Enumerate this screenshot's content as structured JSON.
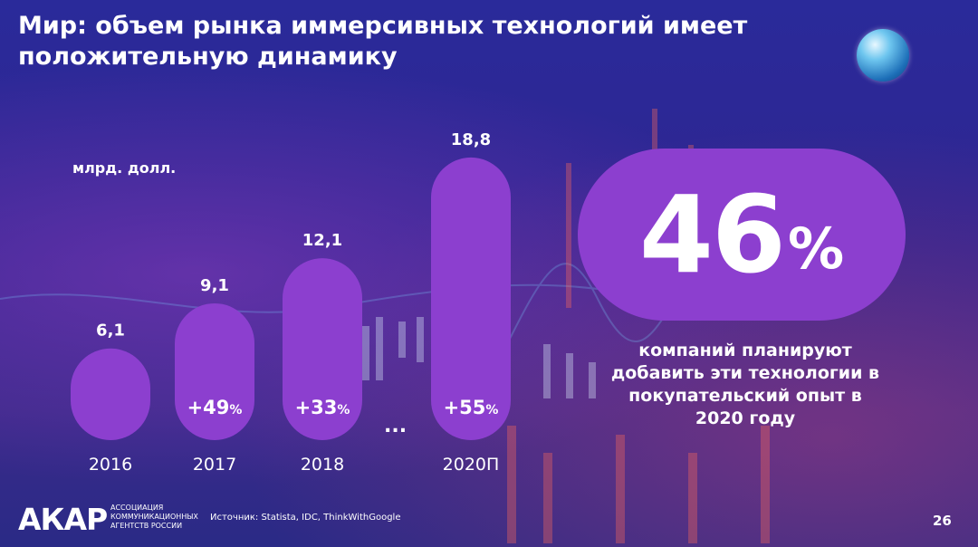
{
  "title": "Мир: объем рынка иммерсивных технологий имеет положительную динамику",
  "chart_data": {
    "type": "bar",
    "unit_label": "млрд. долл.",
    "categories": [
      "2016",
      "2017",
      "2018",
      "2020П"
    ],
    "values": [
      6.1,
      9.1,
      12.1,
      18.8
    ],
    "value_labels": [
      "6,1",
      "9,1",
      "12,1",
      "18,8"
    ],
    "growth_labels": [
      "",
      "+49",
      "+33",
      "+55"
    ],
    "growth_unit": "%",
    "gap_marker": "...",
    "bar_color": "#8c3fcf"
  },
  "highlight": {
    "number": "46",
    "unit": "%",
    "caption": "компаний планируют добавить эти технологии в покупательский опыт в 2020 году"
  },
  "footer": {
    "logo": "АКАР",
    "assoc": "АССОЦИАЦИЯ КОММУНИКАЦИОННЫХ АГЕНТСТВ РОССИИ",
    "source": "Источник: Statista, IDC, ThinkWithGoogle",
    "page": "26"
  }
}
